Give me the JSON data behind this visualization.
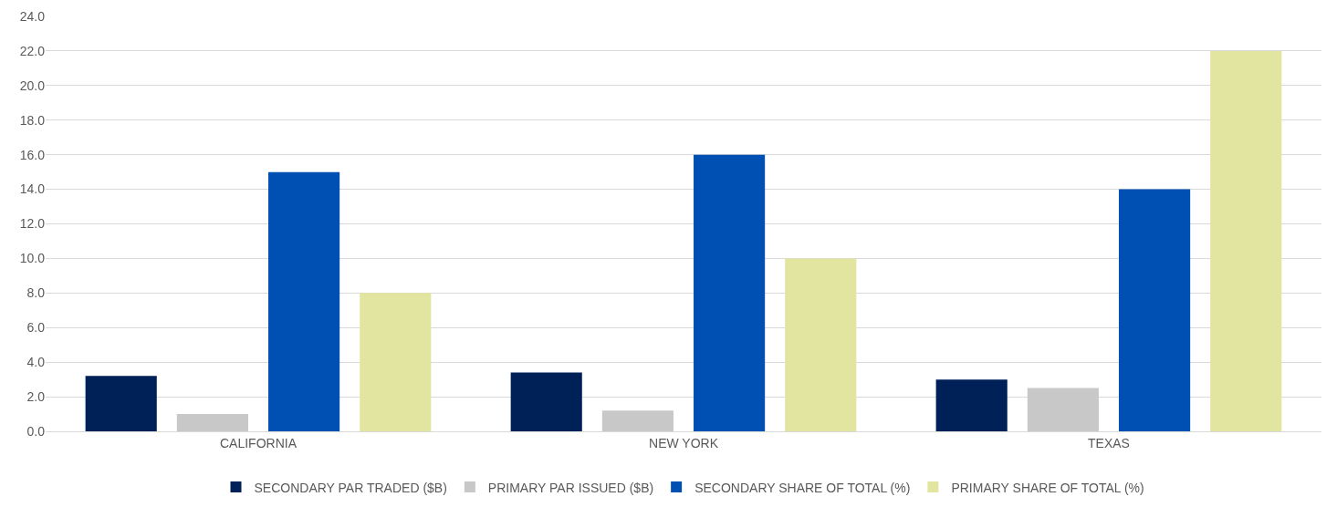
{
  "chart_data": {
    "type": "bar",
    "categories": [
      "CALIFORNIA",
      "NEW YORK",
      "TEXAS"
    ],
    "series": [
      {
        "name": "SECONDARY PAR TRADED ($B)",
        "color": "#002157",
        "values": [
          3.2,
          3.4,
          3.0
        ]
      },
      {
        "name": "PRIMARY PAR ISSUED ($B)",
        "color": "#c8c8c8",
        "values": [
          1.0,
          1.2,
          2.5
        ]
      },
      {
        "name": "SECONDARY SHARE OF TOTAL (%)",
        "color": "#0050b4",
        "values": [
          15.0,
          16.0,
          14.0
        ]
      },
      {
        "name": "PRIMARY SHARE OF TOTAL (%)",
        "color": "#e1e5a0",
        "values": [
          8.0,
          10.0,
          22.0
        ]
      }
    ],
    "ylim": [
      0,
      24
    ],
    "yticks": [
      {
        "value": 0,
        "label": "0.0"
      },
      {
        "value": 2,
        "label": "2.0"
      },
      {
        "value": 4,
        "label": "4.0"
      },
      {
        "value": 6,
        "label": "6.0"
      },
      {
        "value": 8,
        "label": "8.0"
      },
      {
        "value": 10,
        "label": "10.0"
      },
      {
        "value": 12,
        "label": "12.0"
      },
      {
        "value": 14,
        "label": "14.0"
      },
      {
        "value": 16,
        "label": "16.0"
      },
      {
        "value": 18,
        "label": "18.0"
      },
      {
        "value": 20,
        "label": "20.0"
      },
      {
        "value": 22,
        "label": "22.0"
      },
      {
        "value": 24,
        "label": "24.0"
      }
    ],
    "grid": "y",
    "legend": "bottom"
  }
}
